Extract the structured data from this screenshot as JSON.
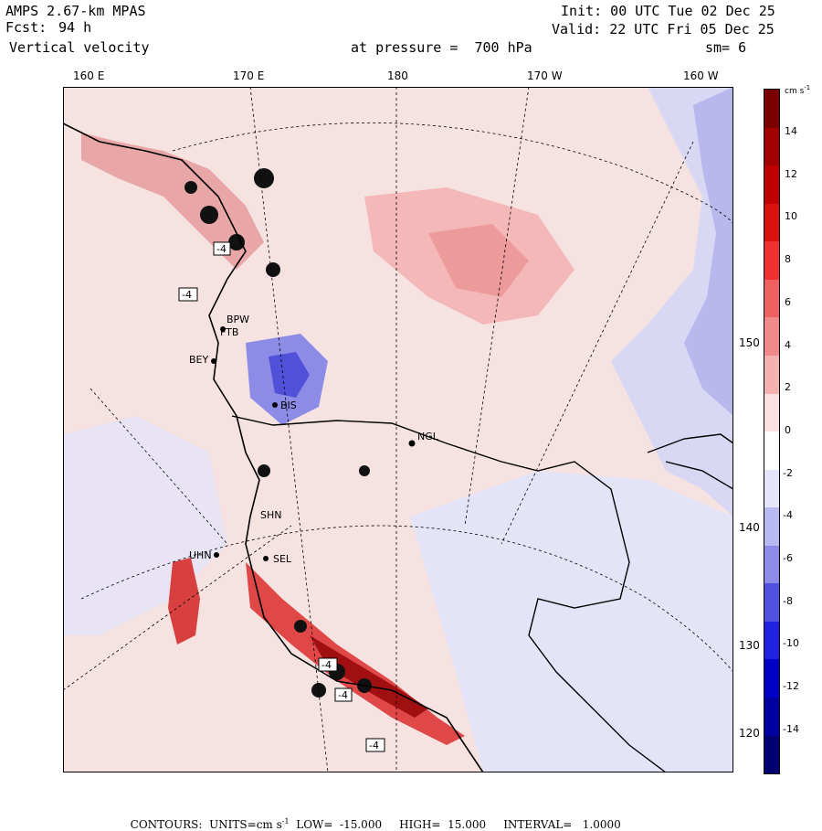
{
  "header": {
    "model": "AMPS 2.67-km MPAS",
    "fcst_label": "Fcst:",
    "fcst_value": "94 h",
    "field": "Vertical velocity",
    "init": "Init: 00 UTC Tue 02 Dec 25",
    "valid": "Valid: 22 UTC Fri 05 Dec 25",
    "level": "at pressure =  700 hPa",
    "smoothing": "sm= 6"
  },
  "map": {
    "longitude_labels": [
      "160 E",
      "170 E",
      "180",
      "170 W",
      "160 W"
    ],
    "latitude_labels": [
      "150 W",
      "140 W",
      "130 W",
      "120 W"
    ],
    "stations": [
      "BPW",
      "FTB",
      "BEY",
      "BIS",
      "NGL",
      "SEL",
      "UHN",
      "SHN"
    ],
    "contour_markers": [
      "-4",
      "-4",
      "-4",
      "-4",
      "-4"
    ]
  },
  "colorbar": {
    "units_label": "cm s",
    "units_sup": "-1",
    "levels": [
      14,
      12,
      10,
      8,
      6,
      4,
      2,
      0,
      -2,
      -4,
      -6,
      -8,
      -10,
      -12,
      -14
    ],
    "colors": [
      "#7a0000",
      "#a00000",
      "#c00000",
      "#dd1010",
      "#f03030",
      "#f06060",
      "#f08a8a",
      "#f5b0b0",
      "#fae0e0",
      "#ffffff",
      "#e4e4fb",
      "#b8b8f2",
      "#8c8ce8",
      "#5050e0",
      "#2020e0",
      "#0000c8",
      "#0000a0",
      "#000070"
    ]
  },
  "footer": {
    "contours_label": "CONTOURS:",
    "units_text": "UNITS=cm s",
    "units_sup": "-1",
    "low": "LOW=  -15.000",
    "high": "HIGH=  15.000",
    "interval": "INTERVAL=   1.0000"
  }
}
